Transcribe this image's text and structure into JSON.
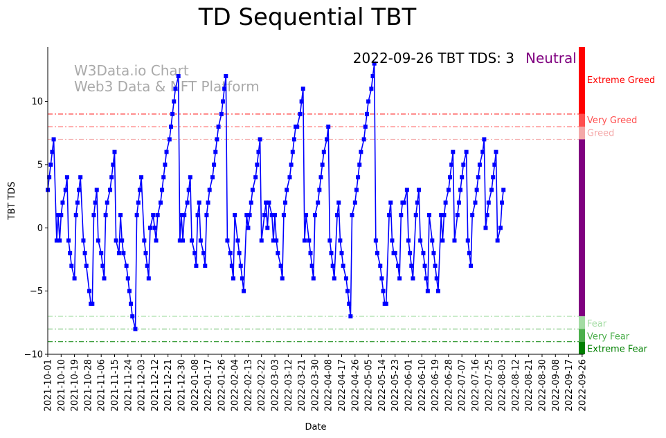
{
  "chart_data": {
    "type": "line",
    "title": "TD Sequential TBT",
    "xlabel": "Date",
    "ylabel": "TBT TDS",
    "ylim": [
      -10,
      14.3
    ],
    "xlim": [
      0,
      361
    ],
    "yticks": [
      -10,
      -5,
      0,
      5,
      10
    ],
    "ytick_labels": [
      "−10",
      "−5",
      "0",
      "5",
      "10"
    ],
    "start_date": "2021-10-01",
    "xtick_labels": [
      "2021-10-01",
      "2021-10-10",
      "2021-10-19",
      "2021-10-28",
      "2021-11-06",
      "2021-11-15",
      "2021-11-24",
      "2021-12-03",
      "2021-12-12",
      "2021-12-21",
      "2021-12-30",
      "2022-01-08",
      "2022-01-17",
      "2022-01-26",
      "2022-02-04",
      "2022-02-13",
      "2022-02-22",
      "2022-03-03",
      "2022-03-12",
      "2022-03-21",
      "2022-03-30",
      "2022-04-08",
      "2022-04-17",
      "2022-04-26",
      "2022-05-05",
      "2022-05-14",
      "2022-05-23",
      "2022-06-01",
      "2022-06-10",
      "2022-06-19",
      "2022-06-28",
      "2022-07-07",
      "2022-07-16",
      "2022-07-25",
      "2022-08-03",
      "2022-08-12",
      "2022-08-21",
      "2022-08-30",
      "2022-09-08",
      "2022-09-17",
      "2022-09-26"
    ],
    "xtick_step_days": 9,
    "series": [
      {
        "name": "TBT TDS",
        "color": "#0000ff",
        "marker": "square",
        "points": [
          [
            0,
            3
          ],
          [
            1,
            4
          ],
          [
            2,
            5
          ],
          [
            3,
            6
          ],
          [
            4,
            7
          ],
          [
            6,
            -1
          ],
          [
            7,
            1
          ],
          [
            8,
            -1
          ],
          [
            9,
            1
          ],
          [
            10,
            2
          ],
          [
            12,
            3
          ],
          [
            13,
            4
          ],
          [
            14,
            -1
          ],
          [
            15,
            -2
          ],
          [
            16,
            -3
          ],
          [
            18,
            -4
          ],
          [
            19,
            1
          ],
          [
            20,
            2
          ],
          [
            21,
            3
          ],
          [
            22,
            4
          ],
          [
            24,
            -1
          ],
          [
            25,
            -2
          ],
          [
            26,
            -3
          ],
          [
            28,
            -5
          ],
          [
            29,
            -6
          ],
          [
            30,
            -6
          ],
          [
            31,
            1
          ],
          [
            32,
            2
          ],
          [
            33,
            3
          ],
          [
            34,
            -1
          ],
          [
            36,
            -2
          ],
          [
            37,
            -3
          ],
          [
            38,
            -4
          ],
          [
            39,
            1
          ],
          [
            40,
            2
          ],
          [
            42,
            3
          ],
          [
            43,
            4
          ],
          [
            44,
            5
          ],
          [
            45,
            6
          ],
          [
            46,
            -1
          ],
          [
            48,
            -2
          ],
          [
            49,
            1
          ],
          [
            50,
            -1
          ],
          [
            51,
            -2
          ],
          [
            53,
            -3
          ],
          [
            54,
            -4
          ],
          [
            55,
            -5
          ],
          [
            56,
            -6
          ],
          [
            57,
            -7
          ],
          [
            59,
            -8
          ],
          [
            60,
            1
          ],
          [
            61,
            2
          ],
          [
            62,
            3
          ],
          [
            63,
            4
          ],
          [
            65,
            -1
          ],
          [
            66,
            -2
          ],
          [
            67,
            -3
          ],
          [
            68,
            -4
          ],
          [
            69,
            0
          ],
          [
            71,
            1
          ],
          [
            72,
            0
          ],
          [
            73,
            -1
          ],
          [
            74,
            1
          ],
          [
            76,
            2
          ],
          [
            77,
            3
          ],
          [
            78,
            4
          ],
          [
            79,
            5
          ],
          [
            80,
            6
          ],
          [
            82,
            7
          ],
          [
            83,
            8
          ],
          [
            84,
            9
          ],
          [
            85,
            10
          ],
          [
            86,
            11
          ],
          [
            88,
            12
          ],
          [
            89,
            -1
          ],
          [
            90,
            1
          ],
          [
            91,
            -1
          ],
          [
            92,
            1
          ],
          [
            94,
            2
          ],
          [
            95,
            3
          ],
          [
            96,
            4
          ],
          [
            97,
            -1
          ],
          [
            99,
            -2
          ],
          [
            100,
            -3
          ],
          [
            101,
            1
          ],
          [
            102,
            2
          ],
          [
            103,
            -1
          ],
          [
            105,
            -2
          ],
          [
            106,
            -3
          ],
          [
            107,
            1
          ],
          [
            108,
            2
          ],
          [
            109,
            3
          ],
          [
            111,
            4
          ],
          [
            112,
            5
          ],
          [
            113,
            6
          ],
          [
            114,
            7
          ],
          [
            115,
            8
          ],
          [
            117,
            9
          ],
          [
            118,
            10
          ],
          [
            119,
            11
          ],
          [
            120,
            12
          ],
          [
            121,
            -1
          ],
          [
            123,
            -2
          ],
          [
            124,
            -3
          ],
          [
            125,
            -4
          ],
          [
            126,
            1
          ],
          [
            128,
            -1
          ],
          [
            129,
            -2
          ],
          [
            130,
            -3
          ],
          [
            131,
            -4
          ],
          [
            132,
            -5
          ],
          [
            134,
            1
          ],
          [
            135,
            0
          ],
          [
            136,
            1
          ],
          [
            137,
            2
          ],
          [
            138,
            3
          ],
          [
            140,
            4
          ],
          [
            141,
            5
          ],
          [
            142,
            6
          ],
          [
            143,
            7
          ],
          [
            144,
            -1
          ],
          [
            146,
            1
          ],
          [
            147,
            2
          ],
          [
            148,
            0
          ],
          [
            149,
            2
          ],
          [
            151,
            1
          ],
          [
            152,
            -1
          ],
          [
            153,
            1
          ],
          [
            154,
            -1
          ],
          [
            155,
            -2
          ],
          [
            157,
            -3
          ],
          [
            158,
            -4
          ],
          [
            159,
            1
          ],
          [
            160,
            2
          ],
          [
            161,
            3
          ],
          [
            163,
            4
          ],
          [
            164,
            5
          ],
          [
            165,
            6
          ],
          [
            166,
            7
          ],
          [
            167,
            8
          ],
          [
            168,
            8
          ],
          [
            170,
            9
          ],
          [
            171,
            10
          ],
          [
            172,
            11
          ],
          [
            173,
            -1
          ],
          [
            174,
            1
          ],
          [
            176,
            -1
          ],
          [
            177,
            -2
          ],
          [
            178,
            -3
          ],
          [
            179,
            -4
          ],
          [
            180,
            1
          ],
          [
            182,
            2
          ],
          [
            183,
            3
          ],
          [
            184,
            4
          ],
          [
            185,
            5
          ],
          [
            186,
            6
          ],
          [
            188,
            7
          ],
          [
            189,
            8
          ],
          [
            190,
            -1
          ],
          [
            191,
            -2
          ],
          [
            192,
            -3
          ],
          [
            193,
            -4
          ],
          [
            195,
            1
          ],
          [
            196,
            2
          ],
          [
            197,
            -1
          ],
          [
            198,
            -2
          ],
          [
            199,
            -3
          ],
          [
            201,
            -4
          ],
          [
            202,
            -5
          ],
          [
            203,
            -6
          ],
          [
            204,
            -7
          ],
          [
            205,
            1
          ],
          [
            207,
            2
          ],
          [
            208,
            3
          ],
          [
            209,
            4
          ],
          [
            210,
            5
          ],
          [
            211,
            6
          ],
          [
            213,
            7
          ],
          [
            214,
            8
          ],
          [
            215,
            9
          ],
          [
            216,
            10
          ],
          [
            218,
            11
          ],
          [
            219,
            12
          ],
          [
            220,
            13
          ],
          [
            221,
            -1
          ],
          [
            222,
            -2
          ],
          [
            224,
            -3
          ],
          [
            225,
            -4
          ],
          [
            226,
            -5
          ],
          [
            227,
            -6
          ],
          [
            228,
            -6
          ],
          [
            230,
            1
          ],
          [
            231,
            2
          ],
          [
            232,
            -1
          ],
          [
            233,
            -2
          ],
          [
            234,
            -2
          ],
          [
            236,
            -3
          ],
          [
            237,
            -4
          ],
          [
            238,
            1
          ],
          [
            239,
            2
          ],
          [
            240,
            2
          ],
          [
            242,
            3
          ],
          [
            243,
            -1
          ],
          [
            244,
            -2
          ],
          [
            245,
            -3
          ],
          [
            246,
            -4
          ],
          [
            248,
            1
          ],
          [
            249,
            2
          ],
          [
            250,
            3
          ],
          [
            251,
            -1
          ],
          [
            253,
            -2
          ],
          [
            254,
            -3
          ],
          [
            255,
            -4
          ],
          [
            256,
            -5
          ],
          [
            257,
            1
          ],
          [
            259,
            -1
          ],
          [
            260,
            -2
          ],
          [
            261,
            -3
          ],
          [
            262,
            -4
          ],
          [
            263,
            -5
          ],
          [
            265,
            1
          ],
          [
            266,
            -1
          ],
          [
            267,
            1
          ],
          [
            268,
            2
          ],
          [
            270,
            3
          ],
          [
            271,
            4
          ],
          [
            272,
            5
          ],
          [
            273,
            6
          ],
          [
            274,
            -1
          ],
          [
            276,
            1
          ],
          [
            277,
            2
          ],
          [
            278,
            3
          ],
          [
            279,
            4
          ],
          [
            280,
            5
          ],
          [
            282,
            6
          ],
          [
            283,
            -1
          ],
          [
            284,
            -2
          ],
          [
            285,
            -3
          ],
          [
            286,
            1
          ],
          [
            288,
            2
          ],
          [
            289,
            3
          ],
          [
            290,
            4
          ],
          [
            291,
            5
          ],
          [
            293,
            6
          ],
          [
            294,
            7
          ],
          [
            295,
            0
          ],
          [
            296,
            1
          ],
          [
            297,
            2
          ],
          [
            299,
            3
          ],
          [
            300,
            4
          ],
          [
            301,
            5
          ],
          [
            302,
            6
          ],
          [
            303,
            -1
          ],
          [
            305,
            0
          ],
          [
            306,
            2
          ],
          [
            307,
            3
          ]
        ]
      }
    ],
    "threshold_lines": [
      {
        "value": 9,
        "label": "Extreme Greed",
        "color": "#ff0000"
      },
      {
        "value": 8,
        "label": "Very Greed",
        "color": "#ff5050"
      },
      {
        "value": 7,
        "label": "Greed",
        "color": "#f4a8a8"
      },
      {
        "value": -7,
        "label": "Fear",
        "color": "#a3dca3"
      },
      {
        "value": -8,
        "label": "Very Fear",
        "color": "#4caf4c"
      },
      {
        "value": -9,
        "label": "Extreme Fear",
        "color": "#008000"
      }
    ],
    "zone_bar": [
      {
        "from": 9,
        "to": 14.3,
        "label": "Extreme Greed",
        "color": "#ff0000"
      },
      {
        "from": 8,
        "to": 9,
        "label": "Very Greed",
        "color": "#ff5050"
      },
      {
        "from": 7,
        "to": 8,
        "label": "Greed",
        "color": "#f4a8a8"
      },
      {
        "from": -7,
        "to": 7,
        "label": "",
        "color": "#800080"
      },
      {
        "from": -8,
        "to": -7,
        "label": "Fear",
        "color": "#a3dca3"
      },
      {
        "from": -9,
        "to": -8,
        "label": "Very Fear",
        "color": "#4caf4c"
      },
      {
        "from": -10,
        "to": -9,
        "label": "Extreme Fear",
        "color": "#008000"
      }
    ],
    "annotation": {
      "text": "2022-09-26 TBT TDS: 3",
      "status": "Neutral",
      "status_color": "#800080"
    },
    "watermark": [
      "W3Data.io Chart",
      "Web3 Data & NFT Platform"
    ]
  }
}
